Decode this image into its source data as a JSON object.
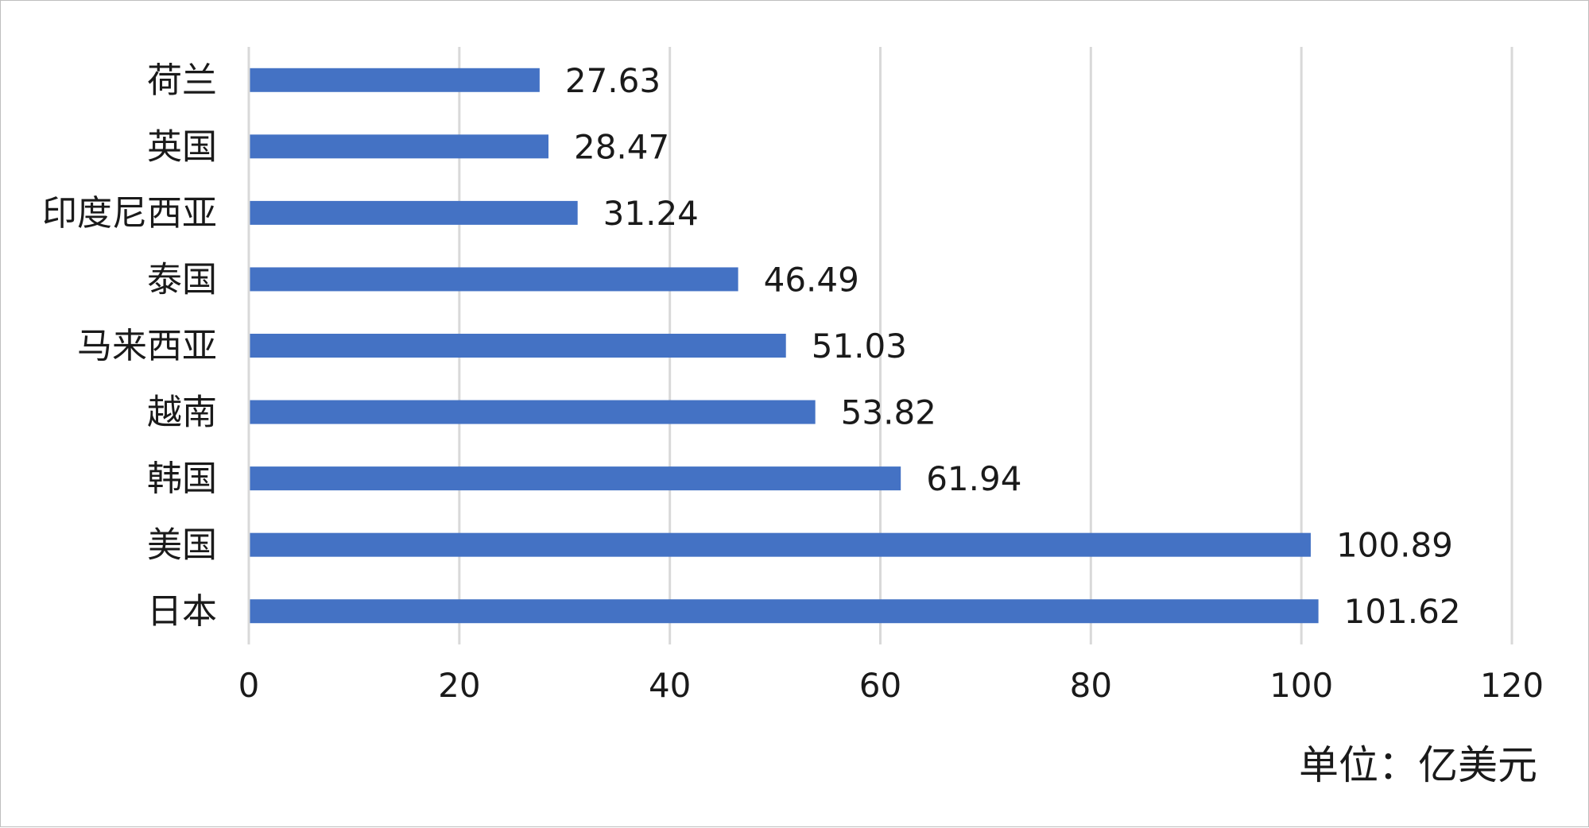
{
  "chart_data": {
    "type": "bar",
    "orientation": "horizontal",
    "categories": [
      "荷兰",
      "英国",
      "印度尼西亚",
      "泰国",
      "马来西亚",
      "越南",
      "韩国",
      "美国",
      "日本"
    ],
    "values": [
      27.63,
      28.47,
      31.24,
      46.49,
      51.03,
      53.82,
      61.94,
      100.89,
      101.62
    ],
    "value_labels": [
      "27.63",
      "28.47",
      "31.24",
      "46.49",
      "51.03",
      "53.82",
      "61.94",
      "100.89",
      "101.62"
    ],
    "xlim": [
      0,
      120
    ],
    "xticks": [
      0,
      20,
      40,
      60,
      80,
      100,
      120
    ],
    "xtick_labels": [
      "0",
      "20",
      "40",
      "60",
      "80",
      "100",
      "120"
    ],
    "title": "",
    "xlabel": "",
    "ylabel": "",
    "grid": "vertical",
    "legend": "none",
    "bar_color": "#4472C4",
    "unit_text": "单位：亿美元"
  }
}
